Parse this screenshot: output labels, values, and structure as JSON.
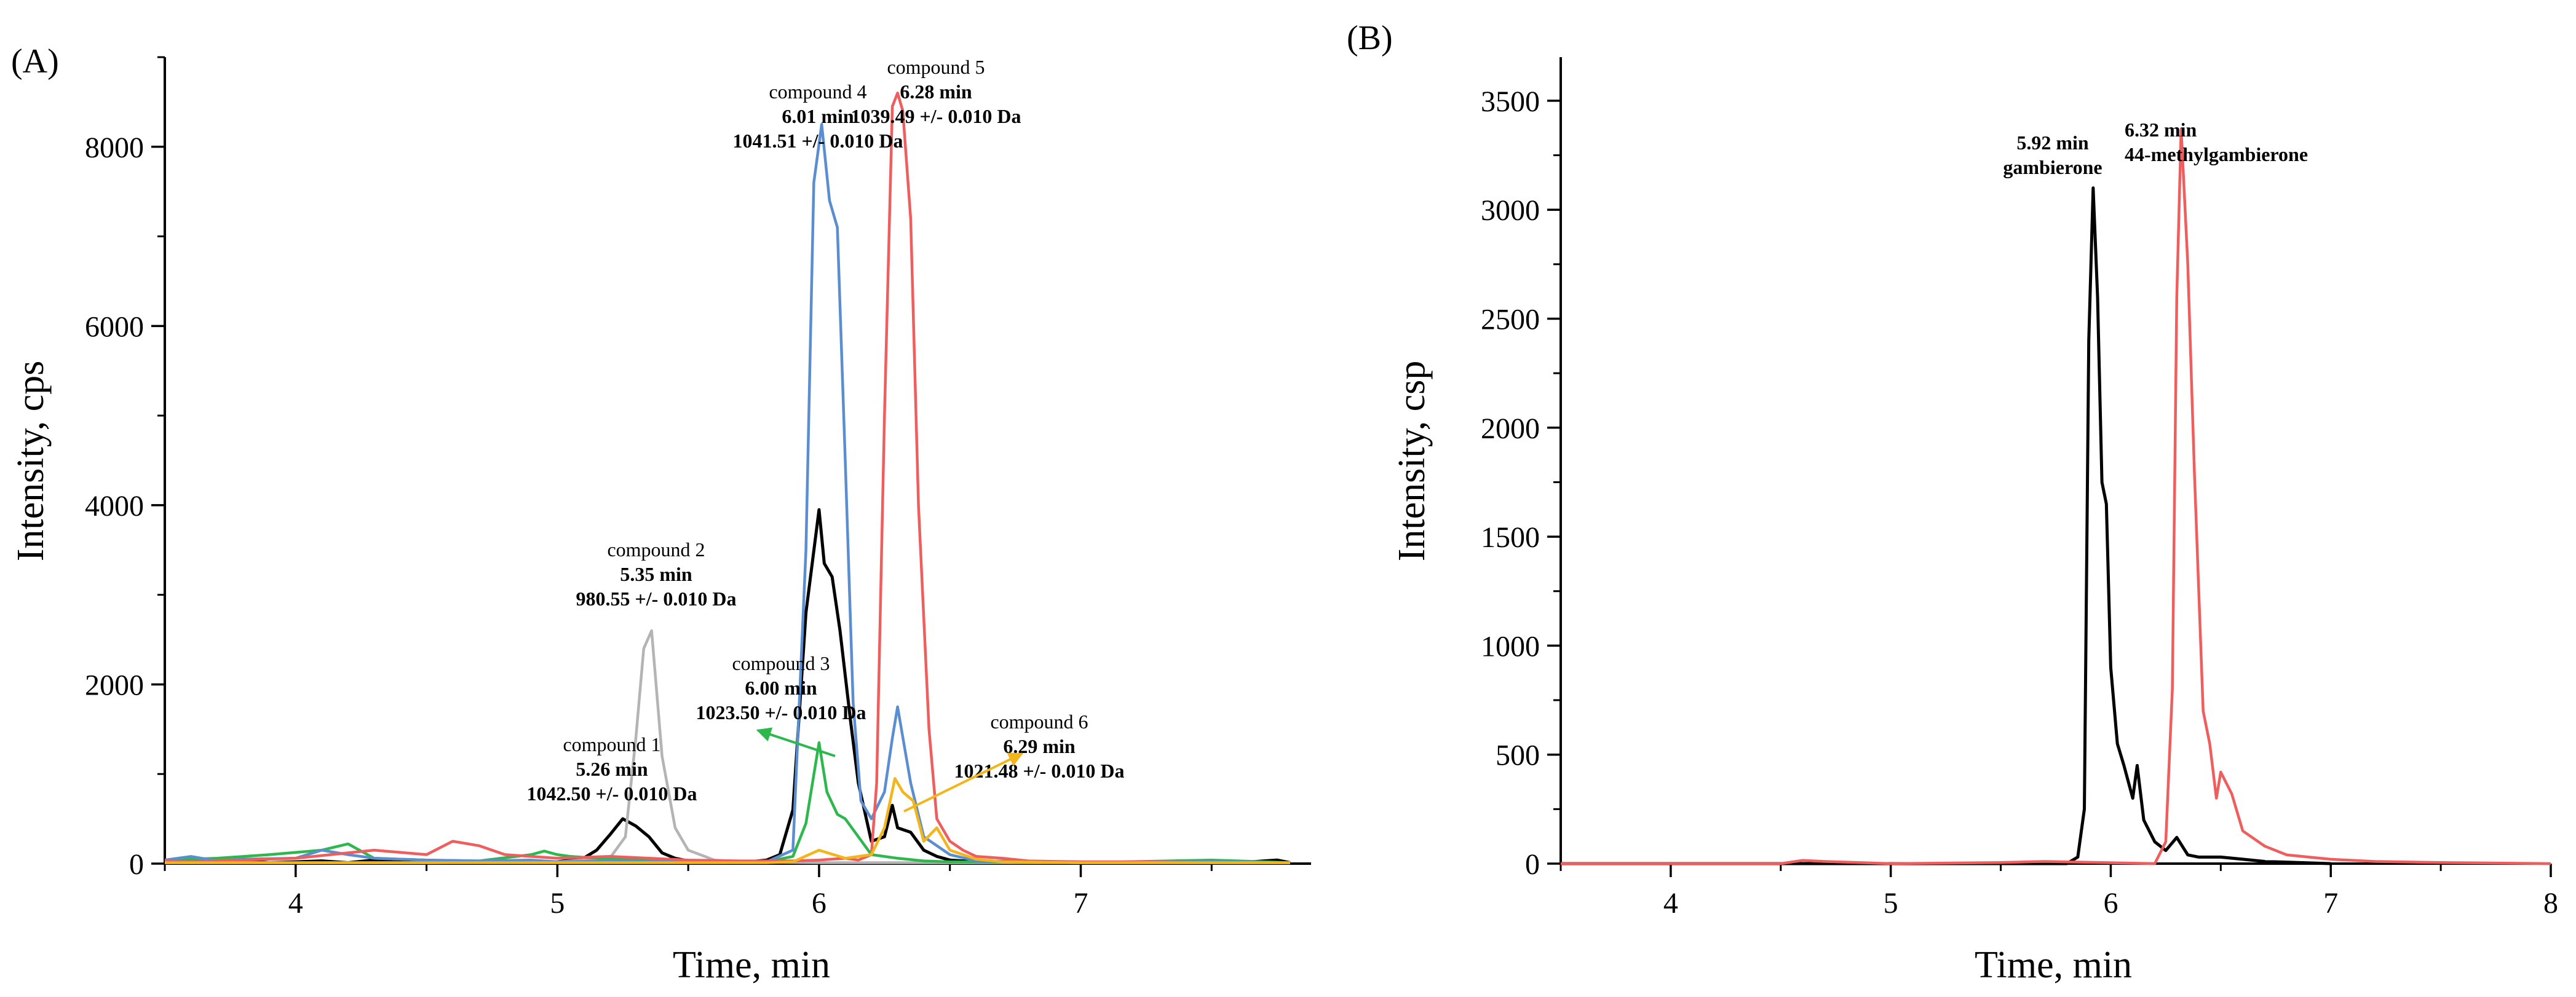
{
  "chart_data": [
    {
      "type": "line",
      "panel_label": "(A)",
      "xlabel": "Time, min",
      "ylabel": "Intensity, cps",
      "xlim": [
        3.5,
        7.88
      ],
      "ylim": [
        0,
        9000
      ],
      "xticks": [
        4,
        5,
        6,
        7
      ],
      "yticks": [
        0,
        2000,
        4000,
        6000,
        8000
      ],
      "series": [
        {
          "name": "compound 1",
          "color": "#000000",
          "x": [
            3.5,
            3.6,
            3.7,
            3.8,
            3.9,
            4.0,
            4.1,
            4.2,
            4.3,
            4.4,
            4.5,
            4.6,
            4.7,
            4.8,
            4.9,
            5.0,
            5.1,
            5.15,
            5.2,
            5.25,
            5.3,
            5.35,
            5.4,
            5.45,
            5.5,
            5.6,
            5.7,
            5.8,
            5.85,
            5.9,
            5.95,
            6.0,
            6.02,
            6.05,
            6.08,
            6.12,
            6.15,
            6.2,
            6.25,
            6.28,
            6.3,
            6.35,
            6.4,
            6.45,
            6.5,
            6.6,
            6.7,
            6.8,
            7.0,
            7.2,
            7.4,
            7.6,
            7.75,
            7.8
          ],
          "y": [
            20,
            60,
            10,
            30,
            10,
            20,
            30,
            10,
            40,
            20,
            10,
            30,
            10,
            20,
            10,
            20,
            60,
            150,
            320,
            500,
            420,
            300,
            120,
            60,
            30,
            20,
            10,
            40,
            100,
            600,
            2800,
            3950,
            3350,
            3200,
            2600,
            1600,
            900,
            250,
            300,
            650,
            400,
            350,
            150,
            80,
            40,
            20,
            10,
            20,
            10,
            10,
            20,
            10,
            40,
            10
          ]
        },
        {
          "name": "compound 2",
          "color": "#b4b4b4",
          "x": [
            3.5,
            4.0,
            4.5,
            5.0,
            5.2,
            5.26,
            5.3,
            5.33,
            5.36,
            5.4,
            5.45,
            5.5,
            5.6,
            5.7,
            6.0,
            7.0,
            7.8
          ],
          "y": [
            10,
            10,
            10,
            20,
            60,
            300,
            1400,
            2400,
            2600,
            1200,
            400,
            150,
            40,
            20,
            10,
            10,
            10
          ]
        },
        {
          "name": "compound 3",
          "color": "#2db84d",
          "x": [
            3.5,
            3.7,
            3.9,
            4.1,
            4.2,
            4.3,
            4.5,
            4.7,
            4.9,
            4.95,
            5.0,
            5.05,
            5.2,
            5.5,
            5.8,
            5.9,
            5.95,
            6.0,
            6.03,
            6.07,
            6.1,
            6.15,
            6.2,
            6.3,
            6.4,
            6.5,
            6.7,
            7.0,
            7.5,
            7.8
          ],
          "y": [
            40,
            60,
            100,
            150,
            220,
            60,
            40,
            30,
            100,
            140,
            100,
            80,
            50,
            30,
            20,
            80,
            450,
            1350,
            800,
            550,
            500,
            300,
            100,
            60,
            30,
            20,
            20,
            10,
            40,
            10
          ]
        },
        {
          "name": "compound 4",
          "color": "#5b8ed1",
          "x": [
            3.5,
            3.6,
            3.7,
            3.8,
            4.0,
            4.1,
            4.2,
            4.3,
            4.5,
            4.7,
            4.9,
            5.0,
            5.2,
            5.5,
            5.8,
            5.9,
            5.95,
            5.98,
            6.01,
            6.04,
            6.07,
            6.1,
            6.13,
            6.16,
            6.2,
            6.25,
            6.28,
            6.3,
            6.35,
            6.4,
            6.5,
            6.6,
            7.0,
            7.5,
            7.8
          ],
          "y": [
            40,
            80,
            30,
            50,
            60,
            150,
            100,
            60,
            40,
            30,
            40,
            20,
            30,
            20,
            20,
            150,
            3500,
            7600,
            8250,
            7400,
            7100,
            4500,
            1800,
            700,
            500,
            800,
            1400,
            1750,
            900,
            300,
            100,
            30,
            20,
            20,
            10
          ]
        },
        {
          "name": "compound 5",
          "color": "#ef5d5d",
          "x": [
            3.5,
            3.6,
            3.8,
            4.0,
            4.2,
            4.3,
            4.5,
            4.6,
            4.7,
            4.8,
            5.0,
            5.2,
            5.5,
            5.7,
            5.9,
            6.0,
            6.1,
            6.15,
            6.2,
            6.22,
            6.25,
            6.28,
            6.3,
            6.32,
            6.35,
            6.38,
            6.42,
            6.45,
            6.5,
            6.55,
            6.6,
            6.7,
            6.8,
            7.0,
            7.2,
            7.5,
            7.8
          ],
          "y": [
            30,
            20,
            40,
            60,
            120,
            150,
            100,
            250,
            200,
            100,
            60,
            80,
            40,
            30,
            30,
            40,
            60,
            40,
            100,
            900,
            5000,
            8450,
            8600,
            8400,
            7200,
            4000,
            1500,
            500,
            250,
            150,
            80,
            60,
            30,
            20,
            20,
            10,
            10
          ]
        },
        {
          "name": "compound 6",
          "color": "#f2b61b",
          "x": [
            3.5,
            4.0,
            5.0,
            5.5,
            5.8,
            5.9,
            6.0,
            6.1,
            6.2,
            6.25,
            6.29,
            6.32,
            6.36,
            6.4,
            6.45,
            6.5,
            6.6,
            6.7,
            7.0,
            7.8
          ],
          "y": [
            10,
            10,
            10,
            10,
            10,
            20,
            150,
            60,
            100,
            400,
            950,
            800,
            700,
            250,
            400,
            150,
            50,
            20,
            10,
            10
          ]
        }
      ],
      "annotations": [
        {
          "lines": [
            "compound 1",
            "5.26 min",
            "1042.50 +/- 0.010 Da"
          ]
        },
        {
          "lines": [
            "compound 2",
            "5.35 min",
            "980.55 +/- 0.010 Da"
          ]
        },
        {
          "lines": [
            "compound 3",
            "6.00 min",
            "1023.50 +/- 0.010 Da"
          ]
        },
        {
          "lines": [
            "compound 4",
            "6.01 min",
            "1041.51 +/- 0.010 Da"
          ]
        },
        {
          "lines": [
            "compound 5",
            "6.28 min",
            "1039.49 +/- 0.010 Da"
          ]
        },
        {
          "lines": [
            "compound 6",
            "6.29 min",
            "1021.48 +/- 0.010 Da"
          ]
        }
      ]
    },
    {
      "type": "line",
      "panel_label": "(B)",
      "xlabel": "Time, min",
      "ylabel": "Intensity, csp",
      "xlim": [
        3.5,
        8
      ],
      "ylim": [
        0,
        3700
      ],
      "xticks": [
        4,
        5,
        6,
        7,
        8
      ],
      "yticks": [
        0,
        500,
        1000,
        1500,
        2000,
        2500,
        3000,
        3500
      ],
      "series": [
        {
          "name": "gambierone",
          "color": "#000000",
          "x": [
            3.5,
            5.6,
            5.8,
            5.85,
            5.88,
            5.9,
            5.92,
            5.94,
            5.96,
            5.98,
            6.0,
            6.03,
            6.06,
            6.1,
            6.12,
            6.15,
            6.2,
            6.25,
            6.3,
            6.35,
            6.4,
            6.5,
            6.6,
            6.7,
            7.0
          ],
          "y": [
            0,
            0,
            0,
            30,
            250,
            2400,
            3100,
            2600,
            1750,
            1650,
            900,
            550,
            450,
            300,
            450,
            200,
            100,
            60,
            120,
            40,
            30,
            30,
            20,
            10,
            0
          ]
        },
        {
          "name": "44-methylgambierone",
          "color": "#ef5d5d",
          "x": [
            3.5,
            4.5,
            4.6,
            4.7,
            5.0,
            5.5,
            5.7,
            6.2,
            6.25,
            6.28,
            6.3,
            6.32,
            6.35,
            6.38,
            6.42,
            6.45,
            6.48,
            6.5,
            6.55,
            6.6,
            6.7,
            6.8,
            6.9,
            7.0,
            7.2,
            7.5,
            8.0
          ],
          "y": [
            0,
            0,
            15,
            10,
            0,
            5,
            10,
            0,
            100,
            800,
            2600,
            3370,
            2750,
            1800,
            700,
            550,
            300,
            420,
            320,
            150,
            80,
            40,
            30,
            20,
            10,
            5,
            0
          ]
        }
      ],
      "annotations": [
        {
          "lines": [
            "5.92 min",
            "gambierone"
          ]
        },
        {
          "lines": [
            "6.32 min",
            "44-methylgambierone"
          ]
        }
      ]
    }
  ]
}
